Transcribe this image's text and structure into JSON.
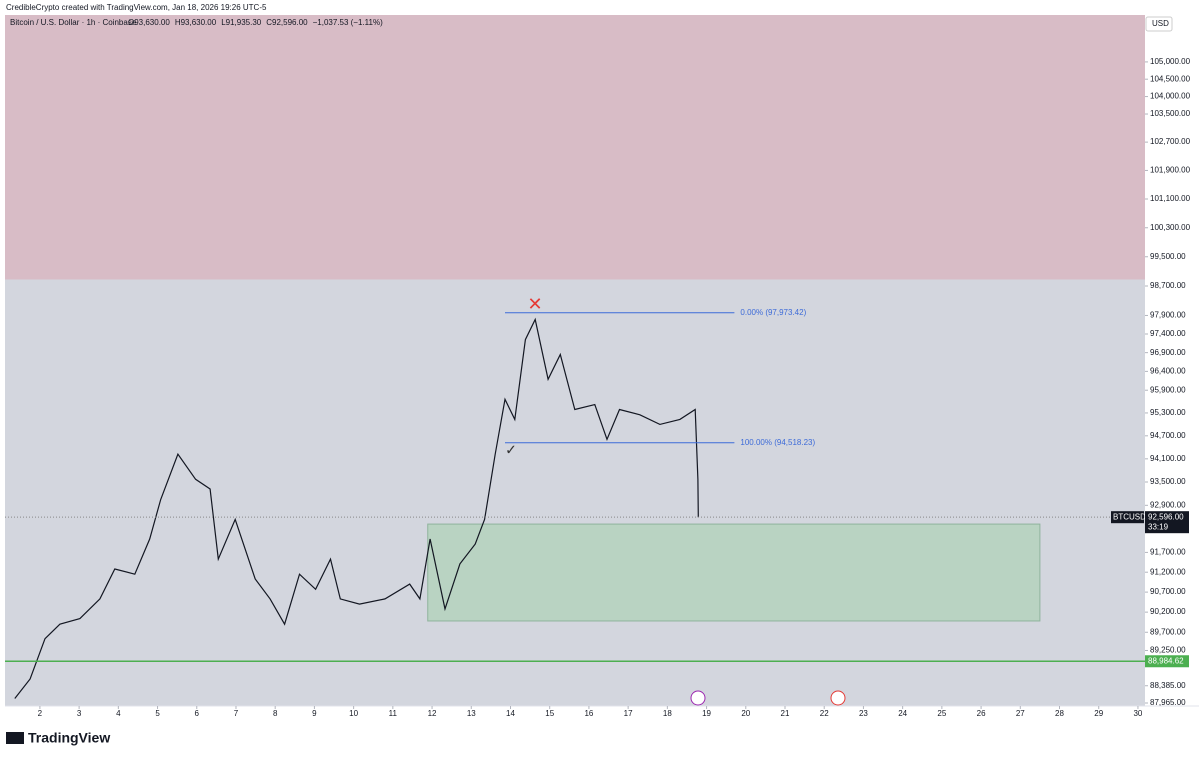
{
  "header": "CredibleCrypto created with TradingView.com, Jan 18, 2026 19:26 UTC-5",
  "footer": "TradingView",
  "chart_data": {
    "type": "line",
    "title": "Bitcoin / U.S. Dollar · 1h · Coinbase",
    "ohlc": [
      "O93,630.00",
      "H93,630.00",
      "L91,935.30",
      "C92,596.00",
      "−1,037.53 (−1.11%)"
    ],
    "currency": "USD",
    "log_scale": true,
    "x": [
      1.36,
      1.75,
      2.13,
      2.51,
      3.02,
      3.53,
      3.91,
      4.42,
      4.8,
      5.08,
      5.52,
      5.97,
      6.34,
      6.55,
      6.98,
      7.49,
      7.87,
      8.24,
      8.62,
      9.03,
      9.41,
      9.66,
      10.15,
      10.8,
      11.43,
      11.69,
      11.95,
      12.33,
      12.71,
      13.1,
      13.34,
      13.61,
      13.86,
      14.11,
      14.38,
      14.63,
      14.96,
      15.27,
      15.64,
      16.15,
      16.46,
      16.78,
      17.3,
      17.81,
      18.32,
      18.71,
      18.78,
      18.79
    ],
    "series": [
      {
        "name": "BTCUSD",
        "color": "#131722",
        "values": [
          88073,
          88550,
          89540,
          89900,
          90040,
          90530,
          91280,
          91150,
          92040,
          93050,
          94220,
          93570,
          93320,
          91530,
          92540,
          91030,
          90530,
          89900,
          91150,
          90770,
          91530,
          90530,
          90400,
          90530,
          90900,
          90530,
          92040,
          90280,
          91410,
          91910,
          92540,
          94220,
          95660,
          95130,
          97250,
          97790,
          96190,
          96850,
          95390,
          95520,
          94610,
          95390,
          95250,
          95000,
          95130,
          95390,
          93570,
          92596
        ]
      }
    ],
    "xlim": [
      1.11,
      30.18
    ],
    "xticks": [
      2,
      3,
      4,
      5,
      6,
      7,
      8,
      9,
      10,
      11,
      12,
      13,
      14,
      15,
      16,
      17,
      18,
      19,
      20,
      21,
      22,
      23,
      24,
      25,
      26,
      27,
      28,
      29,
      30
    ],
    "ylim": [
      87892,
      106369
    ],
    "yticks": [
      {
        "value": 105000,
        "label": "105,000.00"
      },
      {
        "value": 104500,
        "label": "104,500.00"
      },
      {
        "value": 104000,
        "label": "104,000.00"
      },
      {
        "value": 103500,
        "label": "103,500.00"
      },
      {
        "value": 102700,
        "label": "102,700.00"
      },
      {
        "value": 101900,
        "label": "101,900.00"
      },
      {
        "value": 101100,
        "label": "101,100.00"
      },
      {
        "value": 100300,
        "label": "100,300.00"
      },
      {
        "value": 99500,
        "label": "99,500.00"
      },
      {
        "value": 98700,
        "label": "98,700.00"
      },
      {
        "value": 97900,
        "label": "97,900.00"
      },
      {
        "value": 97400,
        "label": "97,400.00"
      },
      {
        "value": 96900,
        "label": "96,900.00"
      },
      {
        "value": 96400,
        "label": "96,400.00"
      },
      {
        "value": 95900,
        "label": "95,900.00"
      },
      {
        "value": 95300,
        "label": "95,300.00"
      },
      {
        "value": 94700,
        "label": "94,700.00"
      },
      {
        "value": 94100,
        "label": "94,100.00"
      },
      {
        "value": 93500,
        "label": "93,500.00"
      },
      {
        "value": 92900,
        "label": "92,900.00"
      },
      {
        "value": 91700,
        "label": "91,700.00"
      },
      {
        "value": 91200,
        "label": "91,200.00"
      },
      {
        "value": 90700,
        "label": "90,700.00"
      },
      {
        "value": 90200,
        "label": "90,200.00"
      },
      {
        "value": 89700,
        "label": "89,700.00"
      },
      {
        "value": 89250,
        "label": "89,250.00"
      },
      {
        "value": 88385,
        "label": "88,385.00"
      },
      {
        "value": 87965,
        "label": "87,965.00"
      }
    ],
    "last_price": {
      "value": 92596,
      "label": "92,596.00"
    },
    "countdown": "33:19",
    "levels": [
      {
        "value": 97973.42,
        "label": "0.00% (97,973.42)",
        "x": [
          13.86,
          19.71
        ],
        "color": "#3d6bd8"
      },
      {
        "value": 94518.23,
        "label": "100.00% (94,518.23)",
        "x": [
          13.86,
          19.71
        ],
        "color": "#3d6bd8"
      },
      {
        "value": 88984.62,
        "label": "88,984.62",
        "color": "#4caf50"
      }
    ],
    "zones": [
      {
        "y": [
          98877,
          106369
        ],
        "color": "#d8bcc6"
      },
      {
        "x": [
          11.89,
          27.5
        ],
        "y": [
          89980,
          92420
        ],
        "color": "#b9d3c2"
      }
    ]
  }
}
